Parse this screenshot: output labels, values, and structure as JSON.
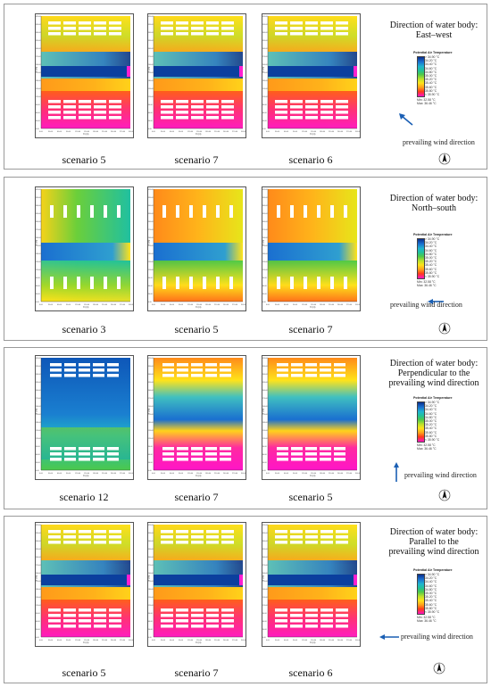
{
  "legend": {
    "title": "Potential Air Temperature",
    "ticks": [
      "> 34.90 °C",
      "34.20 °C",
      "34.40 °C",
      "34.60 °C",
      "34.80 °C",
      "35.00 °C",
      "35.20 °C",
      "35.40 °C",
      "35.60 °C",
      "35.80 °C",
      "< 35.90 °C"
    ],
    "min": "Min: 32.58 °C",
    "max": "Max: 36.46 °C"
  },
  "wind_label": "prevailing wind direction",
  "axes": {
    "y_label": "Y (m)",
    "x_label": "X (m)",
    "y_ticks": [
      "420.00",
      "390.00",
      "360.00",
      "330.00",
      "300.00",
      "270.00",
      "240.00",
      "210.00",
      "180.00",
      "150.00",
      "120.00",
      "90.00",
      "60.00",
      "30.00",
      "0.00"
    ],
    "x_ticks": [
      "0.00",
      "30.00",
      "60.00",
      "90.00",
      "120.00",
      "150.00",
      "180.00",
      "210.00",
      "240.00",
      "270.00",
      "300.00"
    ]
  },
  "panels": [
    {
      "title_lines": [
        "Direction of water body:",
        "East–west"
      ],
      "scenarios": [
        "scenario 5",
        "scenario 7",
        "scenario 6"
      ]
    },
    {
      "title_lines": [
        "Direction of water body:",
        "North–south"
      ],
      "scenarios": [
        "scenario 3",
        "scenario 5",
        "scenario 7"
      ]
    },
    {
      "title_lines": [
        "Direction of water body:",
        "Perpendicular to the",
        "prevailing wind direction"
      ],
      "scenarios": [
        "scenario 12",
        "scenario 7",
        "scenario 5"
      ]
    },
    {
      "title_lines": [
        "Direction of water body:",
        "Parallel to the",
        "prevailing wind direction"
      ],
      "scenarios": [
        "scenario 5",
        "scenario 7",
        "scenario 6"
      ]
    }
  ]
}
